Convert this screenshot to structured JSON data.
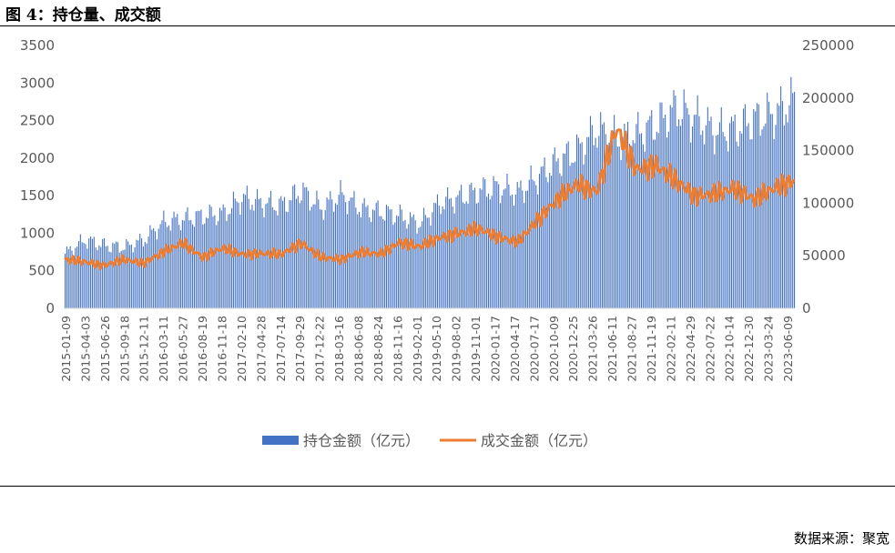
{
  "figure": {
    "title": "图 4：持仓量、成交额",
    "source": "数据来源：聚宽"
  },
  "colors": {
    "open_interest": "#4472c4",
    "turnover": "#ed7d31"
  },
  "chart_data": {
    "type": "bar",
    "combo": "bar (open interest, right axis) + line (turnover, left axis)",
    "title": "",
    "grid": false,
    "legend_position": "bottom",
    "left_axis": {
      "ylim": [
        0,
        3500
      ],
      "ticks": [
        "3500",
        "3000",
        "2500",
        "2000",
        "1500",
        "1000",
        "500",
        "0"
      ]
    },
    "right_axis": {
      "ylim": [
        0,
        250000
      ],
      "ticks": [
        "250000",
        "200000",
        "150000",
        "100000",
        "50000",
        "0"
      ]
    },
    "x_tick_labels": [
      "2015-01-09",
      "2015-04-03",
      "2015-06-26",
      "2015-09-18",
      "2015-12-11",
      "2016-03-11",
      "2016-05-27",
      "2016-08-19",
      "2016-11-18",
      "2017-02-10",
      "2017-04-28",
      "2017-07-14",
      "2017-09-29",
      "2017-12-22",
      "2018-03-16",
      "2018-06-08",
      "2018-08-24",
      "2018-11-16",
      "2019-02-01",
      "2019-05-10",
      "2019-08-02",
      "2019-11-01",
      "2020-01-17",
      "2020-04-17",
      "2020-07-17",
      "2020-10-09",
      "2020-12-25",
      "2021-03-26",
      "2021-06-11",
      "2021-08-27",
      "2021-11-19",
      "2022-02-11",
      "2022-04-29",
      "2022-07-22",
      "2022-10-14",
      "2022-12-30",
      "2023-03-24",
      "2023-06-09"
    ],
    "series": [
      {
        "name": "持仓金额（亿元）",
        "axis": "right",
        "style": "bar",
        "values_by_tick": [
          52000,
          65000,
          60000,
          58000,
          65000,
          82000,
          85000,
          88000,
          90000,
          105000,
          100000,
          98000,
          112000,
          95000,
          108000,
          95000,
          92000,
          88000,
          80000,
          100000,
          105000,
          112000,
          115000,
          110000,
          125000,
          140000,
          150000,
          170000,
          160000,
          165000,
          175000,
          190000,
          180000,
          168000,
          170000,
          180000,
          185000,
          198000
        ]
      },
      {
        "name": "成交金额（亿元）",
        "axis": "left",
        "style": "line",
        "values_by_tick": [
          650,
          620,
          570,
          650,
          600,
          750,
          870,
          680,
          800,
          720,
          730,
          720,
          870,
          680,
          650,
          750,
          720,
          880,
          820,
          940,
          1000,
          1060,
          950,
          880,
          1180,
          1450,
          1650,
          1550,
          2400,
          1850,
          1900,
          1700,
          1500,
          1520,
          1600,
          1450,
          1600,
          1700
        ]
      }
    ]
  }
}
